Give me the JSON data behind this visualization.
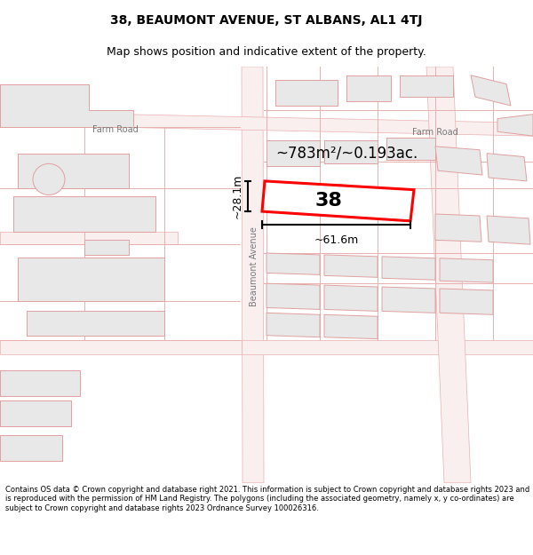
{
  "title": "38, BEAUMONT AVENUE, ST ALBANS, AL1 4TJ",
  "subtitle": "Map shows position and indicative extent of the property.",
  "footer": "Contains OS data © Crown copyright and database right 2021. This information is subject to Crown copyright and database rights 2023 and is reproduced with the permission of HM Land Registry. The polygons (including the associated geometry, namely x, y co-ordinates) are subject to Crown copyright and database rights 2023 Ordnance Survey 100026316.",
  "map_bg": "#ffffff",
  "road_fill": "#f9efef",
  "road_edge": "#e8b0b0",
  "bld_fill": "#e8e8e8",
  "bld_edge": "#e0a0a0",
  "highlight_fill": "#ffffff",
  "highlight_edge": "#ff0000",
  "highlight_lw": 2.2,
  "area_text": "~783m²/~0.193ac.",
  "number_text": "38",
  "dim_width": "~61.6m",
  "dim_height": "~28.1m",
  "road_label_farm1": "Farm Road",
  "road_label_farm2": "Farm Road",
  "road_label_beaumont": "Beaumont Avenue",
  "title_fontsize": 10,
  "subtitle_fontsize": 9
}
